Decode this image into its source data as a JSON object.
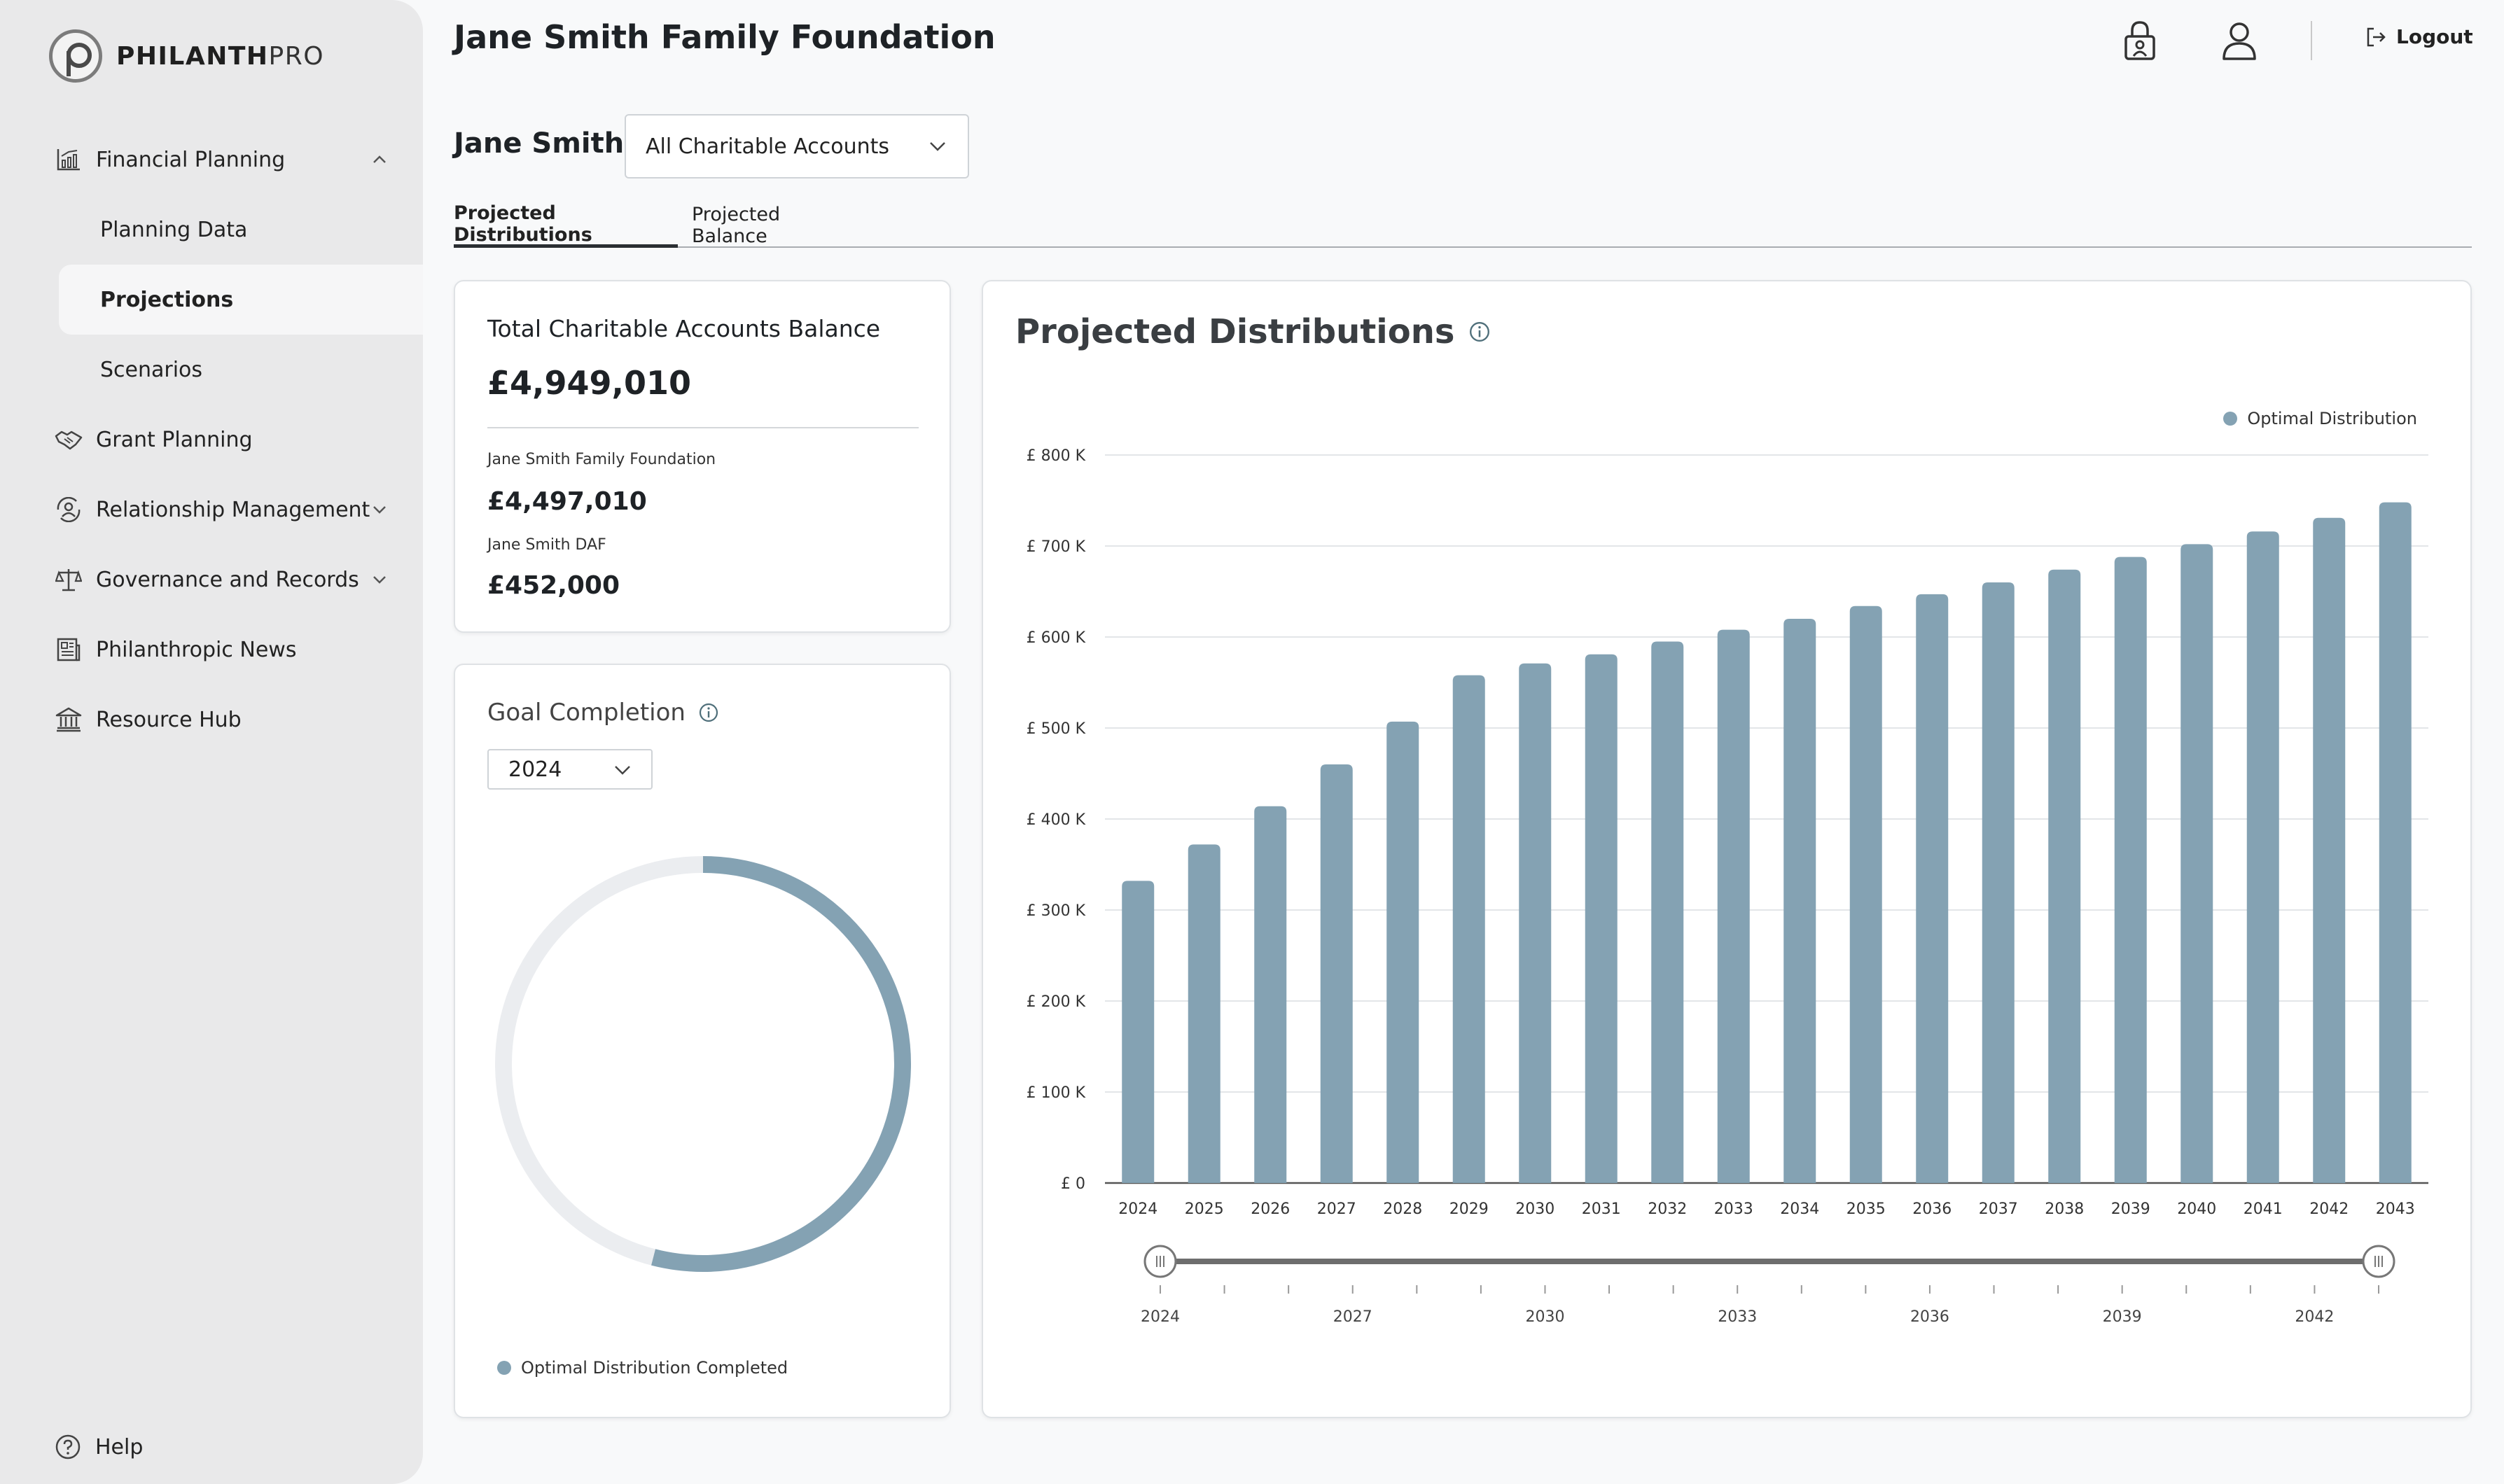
{
  "brand": {
    "name_bold": "PHILANTH",
    "name_light": "PRO"
  },
  "sidebar": {
    "items": [
      {
        "label": "Financial Planning",
        "icon": "chart-icon",
        "expanded": true
      },
      {
        "label": "Grant Planning",
        "icon": "handshake-icon"
      },
      {
        "label": "Relationship Management",
        "icon": "people-cycle-icon"
      },
      {
        "label": "Governance and Records",
        "icon": "scales-icon"
      },
      {
        "label": "Philanthropic News",
        "icon": "newspaper-icon"
      },
      {
        "label": "Resource Hub",
        "icon": "bank-icon"
      }
    ],
    "sub_items": [
      {
        "label": "Planning Data"
      },
      {
        "label": "Projections",
        "active": true
      },
      {
        "label": "Scenarios"
      }
    ],
    "help_label": "Help"
  },
  "header": {
    "title": "Jane Smith Family Foundation",
    "logout_label": "Logout"
  },
  "filter": {
    "person": "Jane Smith",
    "account_select": "All Charitable Accounts"
  },
  "tabs": [
    {
      "label": "Projected Distributions",
      "active": true
    },
    {
      "label": "Projected Balance"
    }
  ],
  "balance_card": {
    "title": "Total Charitable Accounts Balance",
    "total": "£4,949,010",
    "accounts": [
      {
        "name": "Jane Smith Family Foundation",
        "value": "£4,497,010"
      },
      {
        "name": "Jane Smith DAF",
        "value": "£452,000"
      }
    ]
  },
  "goal_card": {
    "title": "Goal Completion",
    "year": "2024",
    "legend": "Optimal Distribution Completed",
    "completed_fraction": 0.54
  },
  "colors": {
    "accent": "#84a2b3",
    "track": "#ebedf0"
  },
  "chart_data": {
    "type": "bar",
    "title": "Projected Distributions",
    "categories": [
      "2024",
      "2025",
      "2026",
      "2027",
      "2028",
      "2029",
      "2030",
      "2031",
      "2032",
      "2033",
      "2034",
      "2035",
      "2036",
      "2037",
      "2038",
      "2039",
      "2040",
      "2041",
      "2042",
      "2043"
    ],
    "series": [
      {
        "name": "Optimal Distribution",
        "values": [
          332,
          372,
          414,
          460,
          507,
          558,
          571,
          581,
          595,
          608,
          620,
          634,
          647,
          660,
          674,
          688,
          702,
          716,
          731,
          748
        ]
      }
    ],
    "unit": "K",
    "y_ticks": [
      "£ 0",
      "£ 100 K",
      "£ 200 K",
      "£ 300 K",
      "£ 400 K",
      "£ 500 K",
      "£ 600 K",
      "£ 700 K",
      "£ 800 K"
    ],
    "ylim": [
      0,
      800
    ],
    "legend": "top-right",
    "grid": true,
    "range_slider": {
      "labels": [
        "2024",
        "2027",
        "2030",
        "2033",
        "2036",
        "2039",
        "2042"
      ],
      "start": "2024",
      "end": "2043"
    }
  }
}
